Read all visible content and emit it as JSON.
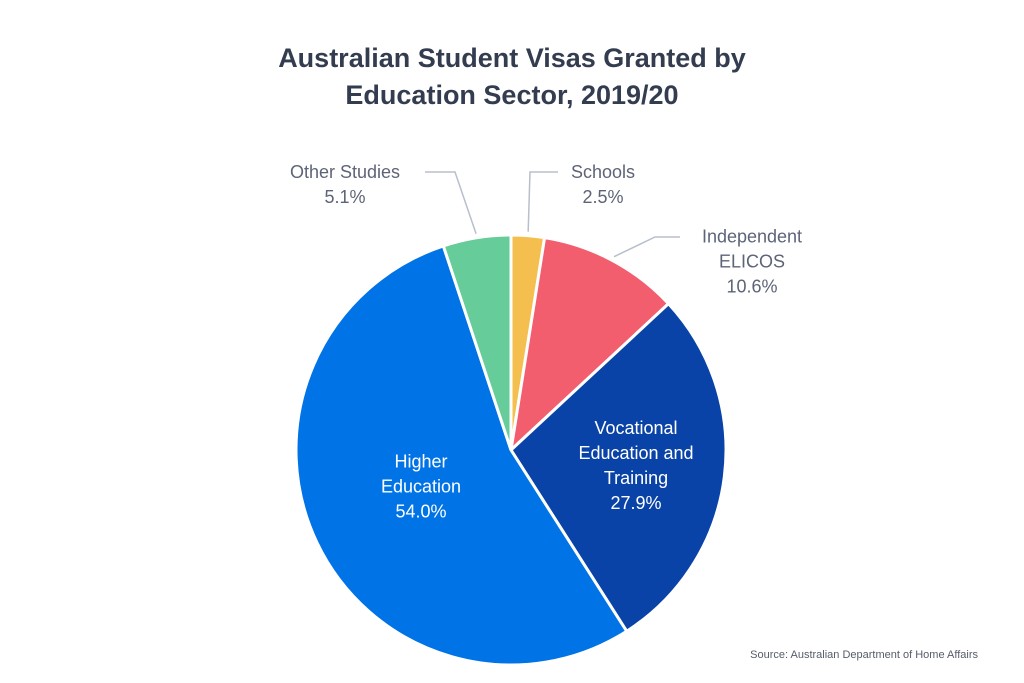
{
  "chart_data": {
    "type": "pie",
    "title": "Australian Student Visas Granted by Education Sector, 2019/20",
    "categories": [
      "Schools",
      "Independent ELICOS",
      "Vocational Education and Training",
      "Higher Education",
      "Other Studies"
    ],
    "values": [
      2.5,
      10.6,
      27.9,
      54.0,
      5.1
    ],
    "value_labels": [
      "2.5%",
      "10.6%",
      "27.9%",
      "54.0%",
      "5.1%"
    ],
    "colors": [
      "#f5bf4f",
      "#f25e6e",
      "#0a43a8",
      "#0073e6",
      "#66cc99"
    ],
    "source": "Source: Australian Department of Home Affairs"
  }
}
